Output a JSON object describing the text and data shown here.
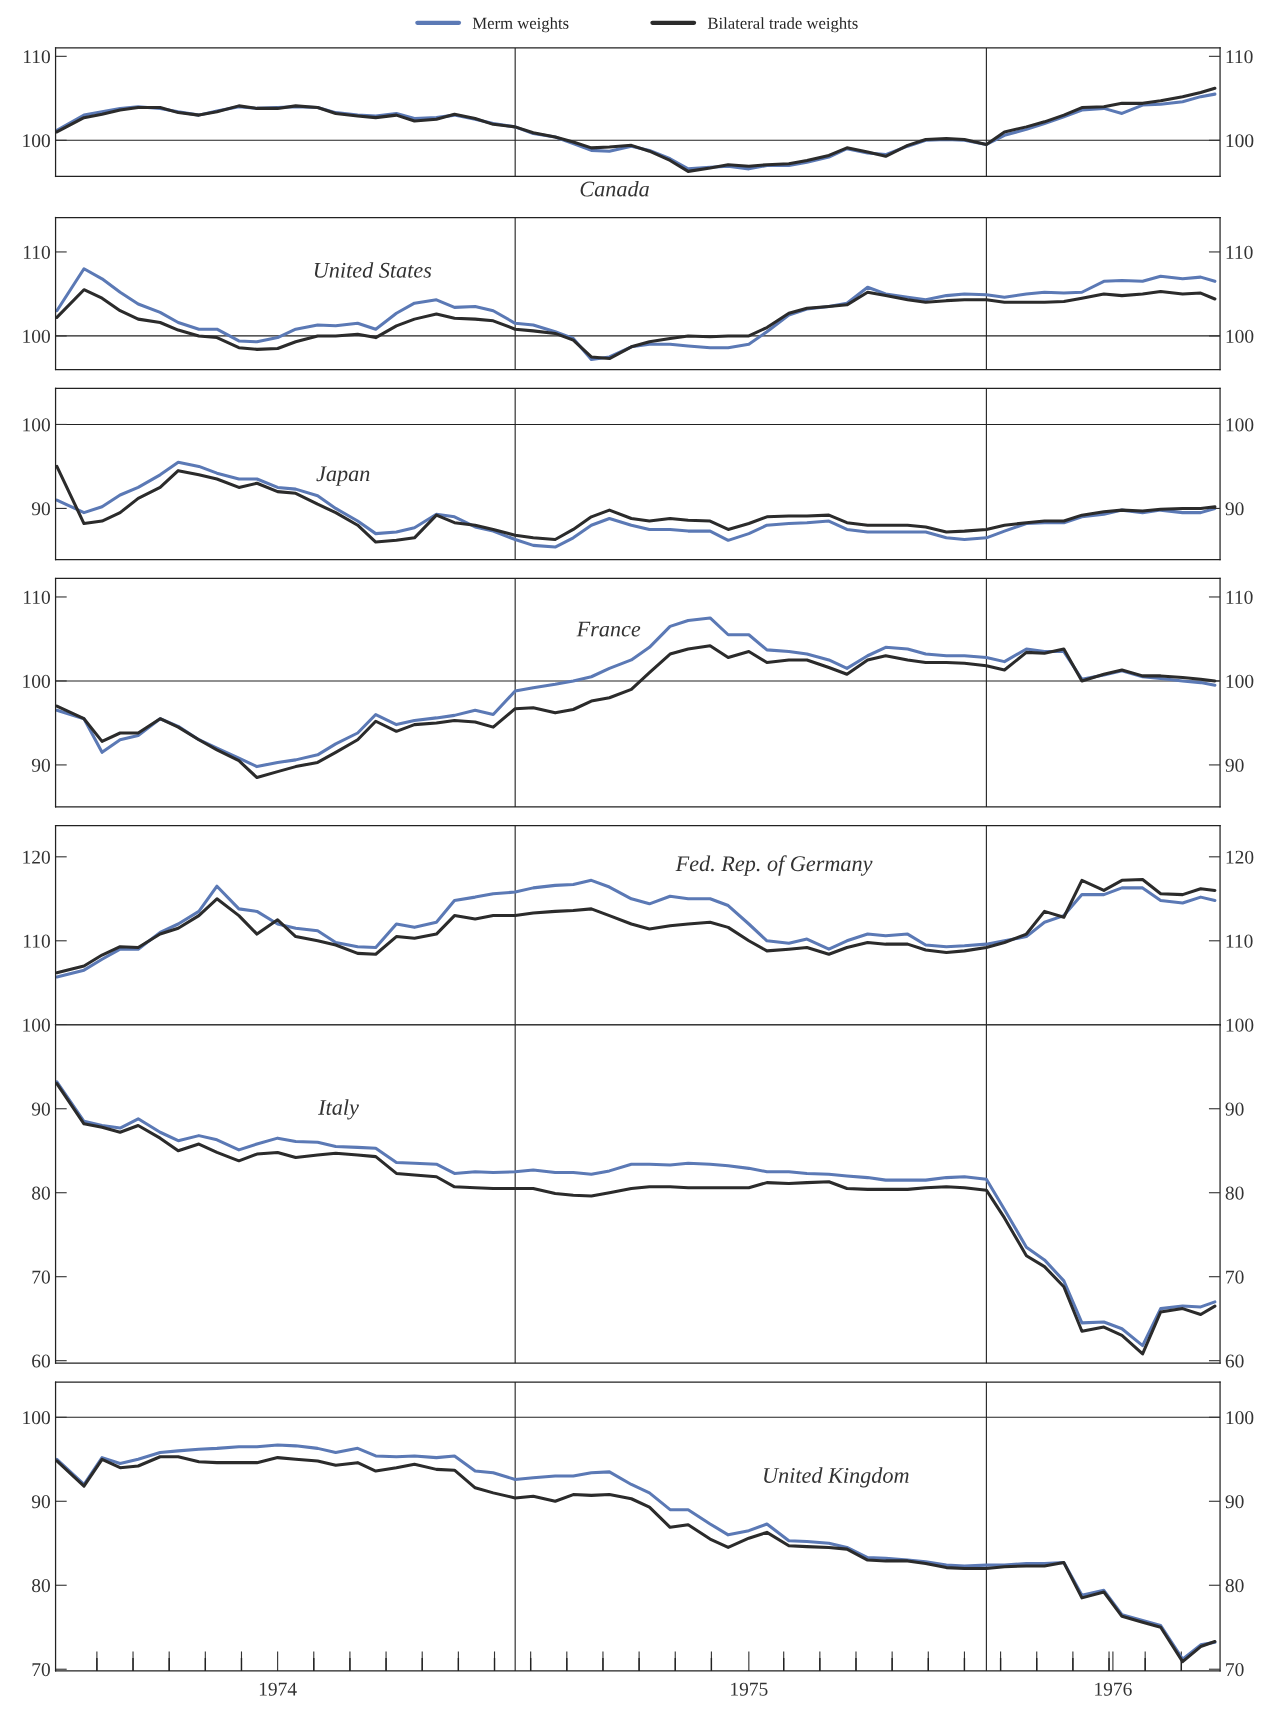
{
  "chart_data": [
    {
      "type": "line",
      "title": "Canada",
      "legend": "top",
      "tick_labels": "y",
      "x": [
        "1974-01-11",
        "1974-02-01",
        "1974-02-15",
        "1974-03-01",
        "1974-03-15",
        "1974-04-01",
        "1974-04-15",
        "1974-05-01",
        "1974-05-15",
        "1974-06-01",
        "1974-06-15",
        "1974-07-01",
        "1974-07-15",
        "1974-08-01",
        "1974-08-15",
        "1974-09-01",
        "1974-09-15",
        "1974-10-01",
        "1974-10-15",
        "1974-11-01",
        "1974-11-15",
        "1974-12-01",
        "1974-12-15",
        "1975-01-01",
        "1975-01-15",
        "1975-02-01",
        "1975-02-15",
        "1975-03-01",
        "1975-03-15",
        "1975-04-01",
        "1975-04-15",
        "1975-05-01",
        "1975-05-15",
        "1975-06-01",
        "1975-06-15",
        "1975-07-01",
        "1975-07-15",
        "1975-08-01",
        "1975-08-15",
        "1975-09-01",
        "1975-09-15",
        "1975-10-01",
        "1975-10-15",
        "1975-11-01",
        "1975-11-15",
        "1975-12-01",
        "1975-12-15",
        "1976-01-01",
        "1976-01-15",
        "1976-02-01",
        "1976-02-15",
        "1976-03-01",
        "1976-03-15",
        "1976-04-01",
        "1976-04-15",
        "1976-05-01",
        "1976-05-15",
        "1976-06-01",
        "1976-06-15",
        "1976-06-26"
      ],
      "xlim": [
        "1974-01-10",
        "1976-06-30"
      ],
      "ylim": [
        95.7,
        111
      ],
      "yticks": [
        100,
        110
      ],
      "y2lim": [
        95.7,
        111
      ],
      "y2ticks": [
        100,
        110
      ],
      "ref_lines": [
        {
          "axis": "y",
          "value": 100
        },
        {
          "axis": "x",
          "value": "1975-01-01"
        },
        {
          "axis": "x",
          "value": "1976-01-01"
        }
      ],
      "series": [
        {
          "name": "Merm weights",
          "color": "#5b79b5",
          "values": [
            101.2,
            103,
            103.4,
            103.8,
            104,
            103.8,
            103.4,
            103,
            103.5,
            104,
            103.8,
            103.9,
            104,
            103.9,
            103.3,
            103,
            102.9,
            103.2,
            102.6,
            102.7,
            103,
            102.5,
            102,
            101.6,
            100.8,
            100.4,
            99.6,
            98.8,
            98.7,
            99.3,
            98.8,
            97.8,
            96.6,
            96.8,
            96.9,
            96.6,
            97,
            97,
            97.4,
            98,
            99,
            98.5,
            98.3,
            99.3,
            100,
            100.1,
            100,
            99.5,
            100.6,
            101.3,
            102,
            102.8,
            103.6,
            103.8,
            103.2,
            104.2,
            104.3,
            104.6,
            105.2,
            105.5
          ]
        },
        {
          "name": "Bilateral trade weights",
          "color": "#2b2b2b",
          "values": [
            101,
            102.7,
            103.1,
            103.6,
            103.9,
            103.9,
            103.3,
            103,
            103.4,
            104.1,
            103.8,
            103.8,
            104.1,
            103.9,
            103.2,
            102.9,
            102.7,
            103,
            102.3,
            102.5,
            103.1,
            102.6,
            101.9,
            101.6,
            100.9,
            100.4,
            99.8,
            99.1,
            99.2,
            99.4,
            98.7,
            97.6,
            96.3,
            96.7,
            97.1,
            96.9,
            97.1,
            97.2,
            97.6,
            98.2,
            99.1,
            98.6,
            98.1,
            99.4,
            100.1,
            100.2,
            100.1,
            99.5,
            101,
            101.6,
            102.2,
            103,
            103.9,
            104,
            104.4,
            104.4,
            104.7,
            105.2,
            105.7,
            106.2
          ]
        }
      ]
    },
    {
      "type": "line",
      "title": "United States",
      "tick_labels": "y",
      "x": [
        "1974-01-11",
        "1974-02-01",
        "1974-02-15",
        "1974-03-01",
        "1974-03-15",
        "1974-04-01",
        "1974-04-15",
        "1974-05-01",
        "1974-05-15",
        "1974-06-01",
        "1974-06-15",
        "1974-07-01",
        "1974-07-15",
        "1974-08-01",
        "1974-08-15",
        "1974-09-01",
        "1974-09-15",
        "1974-10-01",
        "1974-10-15",
        "1974-11-01",
        "1974-11-15",
        "1974-12-01",
        "1974-12-15",
        "1975-01-01",
        "1975-01-15",
        "1975-02-01",
        "1975-02-15",
        "1975-03-01",
        "1975-03-15",
        "1975-04-01",
        "1975-04-15",
        "1975-05-01",
        "1975-05-15",
        "1975-06-01",
        "1975-06-15",
        "1975-07-01",
        "1975-07-15",
        "1975-08-01",
        "1975-08-15",
        "1975-09-01",
        "1975-09-15",
        "1975-10-01",
        "1975-10-15",
        "1975-11-01",
        "1975-11-15",
        "1975-12-01",
        "1975-12-15",
        "1976-01-01",
        "1976-01-15",
        "1976-02-01",
        "1976-02-15",
        "1976-03-01",
        "1976-03-15",
        "1976-04-01",
        "1976-04-15",
        "1976-05-01",
        "1976-05-15",
        "1976-06-01",
        "1976-06-15",
        "1976-06-26"
      ],
      "xlim": [
        "1974-01-10",
        "1976-06-30"
      ],
      "ylim": [
        96,
        114.1
      ],
      "yticks": [
        100,
        110
      ],
      "y2lim": [
        96,
        114.1
      ],
      "y2ticks": [
        100,
        110
      ],
      "ref_lines": [
        {
          "axis": "y",
          "value": 100
        },
        {
          "axis": "x",
          "value": "1975-01-01"
        },
        {
          "axis": "x",
          "value": "1976-01-01"
        }
      ],
      "series": [
        {
          "color": "#5b79b5",
          "values": [
            103,
            108,
            106.8,
            105.2,
            103.8,
            102.8,
            101.6,
            100.8,
            100.8,
            99.4,
            99.3,
            99.8,
            100.8,
            101.3,
            101.2,
            101.5,
            100.8,
            102.7,
            103.9,
            104.3,
            103.4,
            103.5,
            103,
            101.5,
            101.3,
            100.5,
            99.7,
            97.2,
            97.5,
            98.7,
            99,
            99,
            98.8,
            98.6,
            98.6,
            99,
            100.5,
            102.5,
            103.2,
            103.5,
            103.9,
            105.8,
            105,
            104.6,
            104.3,
            104.8,
            105,
            104.9,
            104.6,
            105,
            105.2,
            105.1,
            105.2,
            106.5,
            106.6,
            106.5,
            107.1,
            106.8,
            107,
            106.5
          ]
        },
        {
          "color": "#2b2b2b",
          "values": [
            102.2,
            105.5,
            104.5,
            103,
            102,
            101.6,
            100.7,
            100,
            99.8,
            98.6,
            98.4,
            98.5,
            99.3,
            100,
            100,
            100.2,
            99.8,
            101.2,
            102,
            102.6,
            102.1,
            102,
            101.8,
            100.8,
            100.6,
            100.3,
            99.5,
            97.5,
            97.3,
            98.7,
            99.3,
            99.7,
            100,
            99.9,
            100,
            100,
            101,
            102.7,
            103.3,
            103.5,
            103.7,
            105.2,
            104.8,
            104.3,
            104,
            104.2,
            104.3,
            104.3,
            104,
            104,
            104,
            104.1,
            104.5,
            105,
            104.8,
            105,
            105.3,
            105,
            105.1,
            104.4
          ]
        }
      ]
    },
    {
      "type": "line",
      "title": "Japan",
      "tick_labels": "y",
      "x": [
        "1974-01-11",
        "1974-02-01",
        "1974-02-15",
        "1974-03-01",
        "1974-03-15",
        "1974-04-01",
        "1974-04-15",
        "1974-05-01",
        "1974-05-15",
        "1974-06-01",
        "1974-06-15",
        "1974-07-01",
        "1974-07-15",
        "1974-08-01",
        "1974-08-15",
        "1974-09-01",
        "1974-09-15",
        "1974-10-01",
        "1974-10-15",
        "1974-11-01",
        "1974-11-15",
        "1974-12-01",
        "1974-12-15",
        "1975-01-01",
        "1975-01-15",
        "1975-02-01",
        "1975-02-15",
        "1975-03-01",
        "1975-03-15",
        "1975-04-01",
        "1975-04-15",
        "1975-05-01",
        "1975-05-15",
        "1975-06-01",
        "1975-06-15",
        "1975-07-01",
        "1975-07-15",
        "1975-08-01",
        "1975-08-15",
        "1975-09-01",
        "1975-09-15",
        "1975-10-01",
        "1975-10-15",
        "1975-11-01",
        "1975-11-15",
        "1975-12-01",
        "1975-12-15",
        "1976-01-01",
        "1976-01-15",
        "1976-02-01",
        "1976-02-15",
        "1976-03-01",
        "1976-03-15",
        "1976-04-01",
        "1976-04-15",
        "1976-05-01",
        "1976-05-15",
        "1976-06-01",
        "1976-06-15",
        "1976-06-26"
      ],
      "xlim": [
        "1974-01-10",
        "1976-06-30"
      ],
      "ylim": [
        83.9,
        104.3
      ],
      "yticks": [
        90,
        100
      ],
      "y2lim": [
        83.9,
        104.3
      ],
      "y2ticks": [
        90,
        100
      ],
      "ref_lines": [
        {
          "axis": "y",
          "value": 100
        },
        {
          "axis": "x",
          "value": "1975-01-01"
        },
        {
          "axis": "x",
          "value": "1976-01-01"
        }
      ],
      "series": [
        {
          "color": "#5b79b5",
          "values": [
            91,
            89.5,
            90.2,
            91.6,
            92.5,
            94,
            95.5,
            95,
            94.2,
            93.5,
            93.5,
            92.5,
            92.3,
            91.5,
            90,
            88.5,
            87,
            87.2,
            87.7,
            89.3,
            89,
            87.8,
            87.3,
            86.3,
            85.6,
            85.4,
            86.5,
            88,
            88.8,
            88,
            87.5,
            87.5,
            87.3,
            87.3,
            86.2,
            87,
            88,
            88.2,
            88.3,
            88.5,
            87.5,
            87.2,
            87.2,
            87.2,
            87.2,
            86.5,
            86.3,
            86.5,
            87.3,
            88.2,
            88.3,
            88.3,
            89,
            89.3,
            89.8,
            89.5,
            89.8,
            89.5,
            89.5,
            90
          ]
        },
        {
          "color": "#2b2b2b",
          "values": [
            95,
            88.2,
            88.5,
            89.5,
            91.2,
            92.5,
            94.5,
            94,
            93.5,
            92.5,
            93,
            92,
            91.8,
            90.5,
            89.5,
            88,
            86,
            86.2,
            86.5,
            89.2,
            88.3,
            88,
            87.5,
            86.8,
            86.5,
            86.3,
            87.5,
            89,
            89.8,
            88.8,
            88.5,
            88.8,
            88.6,
            88.5,
            87.5,
            88.2,
            89,
            89.1,
            89.1,
            89.2,
            88.3,
            88,
            88,
            88,
            87.8,
            87.2,
            87.3,
            87.5,
            88,
            88.3,
            88.5,
            88.5,
            89.2,
            89.6,
            89.8,
            89.7,
            89.9,
            90,
            90,
            90.2
          ]
        }
      ]
    },
    {
      "type": "line",
      "title": "France",
      "tick_labels": "y",
      "x": [
        "1974-01-11",
        "1974-02-01",
        "1974-02-15",
        "1974-03-01",
        "1974-03-15",
        "1974-04-01",
        "1974-04-15",
        "1974-05-01",
        "1974-05-15",
        "1974-06-01",
        "1974-06-15",
        "1974-07-01",
        "1974-07-15",
        "1974-08-01",
        "1974-08-15",
        "1974-09-01",
        "1974-09-15",
        "1974-10-01",
        "1974-10-15",
        "1974-11-01",
        "1974-11-15",
        "1974-12-01",
        "1974-12-15",
        "1975-01-01",
        "1975-01-15",
        "1975-02-01",
        "1975-02-15",
        "1975-03-01",
        "1975-03-15",
        "1975-04-01",
        "1975-04-15",
        "1975-05-01",
        "1975-05-15",
        "1975-06-01",
        "1975-06-15",
        "1975-07-01",
        "1975-07-15",
        "1975-08-01",
        "1975-08-15",
        "1975-09-01",
        "1975-09-15",
        "1975-10-01",
        "1975-10-15",
        "1975-11-01",
        "1975-11-15",
        "1975-12-01",
        "1975-12-15",
        "1976-01-01",
        "1976-01-15",
        "1976-02-01",
        "1976-02-15",
        "1976-03-01",
        "1976-03-15",
        "1976-04-01",
        "1976-04-15",
        "1976-05-01",
        "1976-05-15",
        "1976-06-01",
        "1976-06-15",
        "1976-06-26"
      ],
      "xlim": [
        "1974-01-10",
        "1976-06-30"
      ],
      "ylim": [
        85,
        112.2
      ],
      "yticks": [
        90,
        100,
        110
      ],
      "y2lim": [
        85,
        112.2
      ],
      "y2ticks": [
        90,
        100,
        110
      ],
      "ref_lines": [
        {
          "axis": "y",
          "value": 100
        },
        {
          "axis": "x",
          "value": "1975-01-01"
        },
        {
          "axis": "x",
          "value": "1976-01-01"
        }
      ],
      "series": [
        {
          "color": "#5b79b5",
          "values": [
            96.5,
            95.5,
            91.5,
            93,
            93.5,
            95.5,
            94.6,
            93,
            92,
            90.8,
            89.8,
            90.3,
            90.6,
            91.2,
            92.5,
            93.8,
            96,
            94.8,
            95.3,
            95.6,
            95.9,
            96.5,
            96,
            98.8,
            99.2,
            99.6,
            100,
            100.5,
            101.5,
            102.5,
            104,
            106.5,
            107.2,
            107.5,
            105.5,
            105.5,
            103.7,
            103.5,
            103.2,
            102.5,
            101.5,
            103,
            104,
            103.8,
            103.2,
            103,
            103,
            102.8,
            102.3,
            103.8,
            103.5,
            103.5,
            100.2,
            100.7,
            101.2,
            100.5,
            100.3,
            100,
            99.8,
            99.5
          ]
        },
        {
          "color": "#2b2b2b",
          "values": [
            97,
            95.5,
            92.8,
            93.8,
            93.8,
            95.5,
            94.5,
            93,
            91.8,
            90.5,
            88.5,
            89.2,
            89.8,
            90.3,
            91.5,
            93,
            95.2,
            94,
            94.8,
            95,
            95.3,
            95.1,
            94.5,
            96.7,
            96.8,
            96.2,
            96.6,
            97.6,
            98,
            99,
            101,
            103.2,
            103.8,
            104.2,
            102.8,
            103.5,
            102.2,
            102.5,
            102.5,
            101.6,
            100.8,
            102.5,
            103,
            102.5,
            102.2,
            102.2,
            102.1,
            101.8,
            101.3,
            103.4,
            103.3,
            103.8,
            100,
            100.8,
            101.3,
            100.6,
            100.6,
            100.4,
            100.2,
            100
          ]
        }
      ]
    },
    {
      "type": "line",
      "title": "Fed. Rep. of Germany",
      "tick_labels": "y",
      "x": [
        "1974-01-11",
        "1974-02-01",
        "1974-02-15",
        "1974-03-01",
        "1974-03-15",
        "1974-04-01",
        "1974-04-15",
        "1974-05-01",
        "1974-05-15",
        "1974-06-01",
        "1974-06-15",
        "1974-07-01",
        "1974-07-15",
        "1974-08-01",
        "1974-08-15",
        "1974-09-01",
        "1974-09-15",
        "1974-10-01",
        "1974-10-15",
        "1974-11-01",
        "1974-11-15",
        "1974-12-01",
        "1974-12-15",
        "1975-01-01",
        "1975-01-15",
        "1975-02-01",
        "1975-02-15",
        "1975-03-01",
        "1975-03-15",
        "1975-04-01",
        "1975-04-15",
        "1975-05-01",
        "1975-05-15",
        "1975-06-01",
        "1975-06-15",
        "1975-07-01",
        "1975-07-15",
        "1975-08-01",
        "1975-08-15",
        "1975-09-01",
        "1975-09-15",
        "1975-10-01",
        "1975-10-15",
        "1975-11-01",
        "1975-11-15",
        "1975-12-01",
        "1975-12-15",
        "1976-01-01",
        "1976-01-15",
        "1976-02-01",
        "1976-02-15",
        "1976-03-01",
        "1976-03-15",
        "1976-04-01",
        "1976-04-15",
        "1976-05-01",
        "1976-05-15",
        "1976-06-01",
        "1976-06-15",
        "1976-06-26"
      ],
      "xlim": [
        "1974-01-10",
        "1976-06-30"
      ],
      "ylim": [
        100,
        123.7
      ],
      "yticks": [
        100,
        110,
        120
      ],
      "y2lim": [
        100,
        123.7
      ],
      "y2ticks": [
        100,
        110,
        120
      ],
      "ref_lines": [
        {
          "axis": "x",
          "value": "1975-01-01"
        },
        {
          "axis": "x",
          "value": "1976-01-01"
        }
      ],
      "series": [
        {
          "color": "#5b79b5",
          "values": [
            105.7,
            106.5,
            107.8,
            109,
            109,
            111,
            112,
            113.5,
            116.5,
            113.8,
            113.5,
            112,
            111.5,
            111.2,
            109.8,
            109.3,
            109.2,
            112,
            111.6,
            112.2,
            114.8,
            115.2,
            115.6,
            115.8,
            116.3,
            116.6,
            116.7,
            117.2,
            116.4,
            115,
            114.4,
            115.3,
            115,
            115,
            114.2,
            112,
            110,
            109.7,
            110.2,
            109,
            110,
            110.8,
            110.6,
            110.8,
            109.5,
            109.3,
            109.4,
            109.6,
            110,
            110.5,
            112.2,
            113,
            115.5,
            115.5,
            116.3,
            116.3,
            114.8,
            114.5,
            115.2,
            114.8
          ]
        },
        {
          "color": "#2b2b2b",
          "values": [
            106.2,
            107,
            108.3,
            109.3,
            109.2,
            110.8,
            111.5,
            113,
            115,
            113,
            110.8,
            112.5,
            110.5,
            110,
            109.5,
            108.5,
            108.4,
            110.5,
            110.3,
            110.8,
            113,
            112.6,
            113,
            113,
            113.3,
            113.5,
            113.6,
            113.8,
            113,
            112,
            111.4,
            111.8,
            112,
            112.2,
            111.6,
            110,
            108.8,
            109,
            109.2,
            108.4,
            109.2,
            109.8,
            109.6,
            109.6,
            108.9,
            108.6,
            108.8,
            109.2,
            109.8,
            110.8,
            113.5,
            112.8,
            117.2,
            116,
            117.2,
            117.3,
            115.6,
            115.5,
            116.2,
            116
          ]
        }
      ]
    },
    {
      "type": "line",
      "title": "Italy",
      "tick_labels": "y",
      "x": [
        "1974-01-11",
        "1974-02-01",
        "1974-02-15",
        "1974-03-01",
        "1974-03-15",
        "1974-04-01",
        "1974-04-15",
        "1974-05-01",
        "1974-05-15",
        "1974-06-01",
        "1974-06-15",
        "1974-07-01",
        "1974-07-15",
        "1974-08-01",
        "1974-08-15",
        "1974-09-01",
        "1974-09-15",
        "1974-10-01",
        "1974-10-15",
        "1974-11-01",
        "1974-11-15",
        "1974-12-01",
        "1974-12-15",
        "1975-01-01",
        "1975-01-15",
        "1975-02-01",
        "1975-02-15",
        "1975-03-01",
        "1975-03-15",
        "1975-04-01",
        "1975-04-15",
        "1975-05-01",
        "1975-05-15",
        "1975-06-01",
        "1975-06-15",
        "1975-07-01",
        "1975-07-15",
        "1975-08-01",
        "1975-08-15",
        "1975-09-01",
        "1975-09-15",
        "1975-10-01",
        "1975-10-15",
        "1975-11-01",
        "1975-11-15",
        "1975-12-01",
        "1975-12-15",
        "1976-01-01",
        "1976-01-15",
        "1976-02-01",
        "1976-02-15",
        "1976-03-01",
        "1976-03-15",
        "1976-04-01",
        "1976-04-15",
        "1976-05-01",
        "1976-05-15",
        "1976-06-01",
        "1976-06-15",
        "1976-06-26"
      ],
      "xlim": [
        "1974-01-10",
        "1976-06-30"
      ],
      "ylim": [
        59.7,
        100
      ],
      "yticks": [
        60,
        70,
        80,
        90
      ],
      "y2lim": [
        59.7,
        100
      ],
      "y2ticks": [
        60,
        70,
        80,
        90
      ],
      "ref_lines": [
        {
          "axis": "x",
          "value": "1975-01-01"
        },
        {
          "axis": "x",
          "value": "1976-01-01"
        }
      ],
      "series": [
        {
          "color": "#5b79b5",
          "values": [
            93.2,
            88.5,
            88,
            87.7,
            88.8,
            87.2,
            86.2,
            86.8,
            86.3,
            85.1,
            85.8,
            86.5,
            86.1,
            86,
            85.5,
            85.4,
            85.3,
            83.6,
            83.5,
            83.4,
            82.3,
            82.5,
            82.4,
            82.5,
            82.7,
            82.4,
            82.4,
            82.2,
            82.6,
            83.4,
            83.4,
            83.3,
            83.5,
            83.4,
            83.2,
            82.9,
            82.5,
            82.5,
            82.3,
            82.2,
            82,
            81.8,
            81.5,
            81.5,
            81.5,
            81.8,
            81.9,
            81.6,
            78,
            73.5,
            72,
            69.5,
            64.5,
            64.6,
            63.8,
            61.8,
            66.2,
            66.5,
            66.4,
            67
          ]
        },
        {
          "color": "#2b2b2b",
          "values": [
            93,
            88.2,
            87.8,
            87.2,
            88,
            86.5,
            85,
            85.8,
            84.8,
            83.8,
            84.6,
            84.8,
            84.2,
            84.5,
            84.7,
            84.5,
            84.3,
            82.3,
            82.1,
            81.9,
            80.7,
            80.6,
            80.5,
            80.5,
            80.5,
            79.9,
            79.7,
            79.6,
            80,
            80.5,
            80.7,
            80.7,
            80.6,
            80.6,
            80.6,
            80.6,
            81.2,
            81.1,
            81.2,
            81.3,
            80.5,
            80.4,
            80.4,
            80.4,
            80.6,
            80.7,
            80.6,
            80.3,
            77,
            72.5,
            71.2,
            68.8,
            63.5,
            64,
            63,
            60.8,
            65.8,
            66.2,
            65.5,
            66.5
          ]
        }
      ]
    },
    {
      "type": "line",
      "title": "United Kingdom",
      "x": [
        "1974-01-11",
        "1974-02-01",
        "1974-02-15",
        "1974-03-01",
        "1974-03-15",
        "1974-04-01",
        "1974-04-15",
        "1974-05-01",
        "1974-05-15",
        "1974-06-01",
        "1974-06-15",
        "1974-07-01",
        "1974-07-15",
        "1974-08-01",
        "1974-08-15",
        "1974-09-01",
        "1974-09-15",
        "1974-10-01",
        "1974-10-15",
        "1974-11-01",
        "1974-11-15",
        "1974-12-01",
        "1974-12-15",
        "1975-01-01",
        "1975-01-15",
        "1975-02-01",
        "1975-02-15",
        "1975-03-01",
        "1975-03-15",
        "1975-04-01",
        "1975-04-15",
        "1975-05-01",
        "1975-05-15",
        "1975-06-01",
        "1975-06-15",
        "1975-07-01",
        "1975-07-15",
        "1975-08-01",
        "1975-08-15",
        "1975-09-01",
        "1975-09-15",
        "1975-10-01",
        "1975-10-15",
        "1975-11-01",
        "1975-11-15",
        "1975-12-01",
        "1975-12-15",
        "1976-01-01",
        "1976-01-15",
        "1976-02-01",
        "1976-02-15",
        "1976-03-01",
        "1976-03-15",
        "1976-04-01",
        "1976-04-15",
        "1976-05-01",
        "1976-05-15",
        "1976-06-01",
        "1976-06-15",
        "1976-06-26"
      ],
      "xlim": [
        "1974-01-10",
        "1976-06-30"
      ],
      "ylim": [
        69.8,
        104.2
      ],
      "yticks": [
        70,
        80,
        90,
        100
      ],
      "y2lim": [
        69.8,
        104.2
      ],
      "y2ticks": [
        70,
        80,
        90,
        100
      ],
      "xticks": [
        {
          "value": "1974-02-11",
          "label": null
        },
        {
          "value": "1974-03-11",
          "label": null
        },
        {
          "value": "1974-04-08",
          "label": null
        },
        {
          "value": "1974-05-06",
          "label": null
        },
        {
          "value": "1974-06-03",
          "label": null
        },
        {
          "value": "1974-07-01",
          "label": "1974"
        },
        {
          "value": "1974-07-29",
          "label": null
        },
        {
          "value": "1974-08-26",
          "label": null
        },
        {
          "value": "1974-09-23",
          "label": null
        },
        {
          "value": "1974-10-21",
          "label": null
        },
        {
          "value": "1974-11-18",
          "label": null
        },
        {
          "value": "1974-12-16",
          "label": null
        },
        {
          "value": "1975-01-13",
          "label": null
        },
        {
          "value": "1975-02-10",
          "label": null
        },
        {
          "value": "1975-03-10",
          "label": null
        },
        {
          "value": "1975-04-07",
          "label": null
        },
        {
          "value": "1975-05-05",
          "label": null
        },
        {
          "value": "1975-06-02",
          "label": null
        },
        {
          "value": "1975-07-01",
          "label": "1975"
        },
        {
          "value": "1975-07-28",
          "label": null
        },
        {
          "value": "1975-08-25",
          "label": null
        },
        {
          "value": "1975-09-22",
          "label": null
        },
        {
          "value": "1975-10-20",
          "label": null
        },
        {
          "value": "1975-11-17",
          "label": null
        },
        {
          "value": "1975-12-15",
          "label": null
        },
        {
          "value": "1976-01-12",
          "label": null
        },
        {
          "value": "1976-02-09",
          "label": null
        },
        {
          "value": "1976-03-08",
          "label": null
        },
        {
          "value": "1976-04-05",
          "label": null
        },
        {
          "value": "1976-04-08",
          "label": "1976"
        },
        {
          "value": "1976-05-03",
          "label": null
        },
        {
          "value": "1976-05-31",
          "label": null
        }
      ],
      "ref_lines": [
        {
          "axis": "y",
          "value": 100
        },
        {
          "axis": "x",
          "value": "1975-01-01"
        },
        {
          "axis": "x",
          "value": "1976-01-01"
        }
      ],
      "series": [
        {
          "color": "#5b79b5",
          "values": [
            95,
            92,
            95.2,
            94.5,
            95,
            95.8,
            96,
            96.2,
            96.3,
            96.5,
            96.5,
            96.7,
            96.6,
            96.3,
            95.8,
            96.3,
            95.4,
            95.3,
            95.4,
            95.2,
            95.4,
            93.6,
            93.4,
            92.6,
            92.8,
            93,
            93,
            93.4,
            93.5,
            92,
            91,
            89,
            89,
            87.3,
            86,
            86.5,
            87.3,
            85.3,
            85.2,
            85,
            84.5,
            83.3,
            83.2,
            83,
            82.8,
            82.4,
            82.3,
            82.4,
            82.4,
            82.6,
            82.6,
            82.7,
            78.8,
            79.4,
            76.5,
            75.8,
            75.2,
            71.2,
            72.9,
            73.2
          ]
        },
        {
          "color": "#2b2b2b",
          "values": [
            94.8,
            91.8,
            95,
            94,
            94.2,
            95.3,
            95.3,
            94.7,
            94.6,
            94.6,
            94.6,
            95.2,
            95,
            94.8,
            94.3,
            94.6,
            93.6,
            94,
            94.4,
            93.8,
            93.7,
            91.6,
            91,
            90.4,
            90.6,
            90,
            90.8,
            90.7,
            90.8,
            90.3,
            89.3,
            86.9,
            87.2,
            85.5,
            84.5,
            85.6,
            86.3,
            84.7,
            84.6,
            84.5,
            84.3,
            83,
            82.9,
            82.9,
            82.6,
            82.1,
            82,
            82,
            82.2,
            82.3,
            82.3,
            82.7,
            78.5,
            79.2,
            76.3,
            75.6,
            75,
            70.9,
            72.7,
            73.3
          ]
        }
      ]
    }
  ]
}
